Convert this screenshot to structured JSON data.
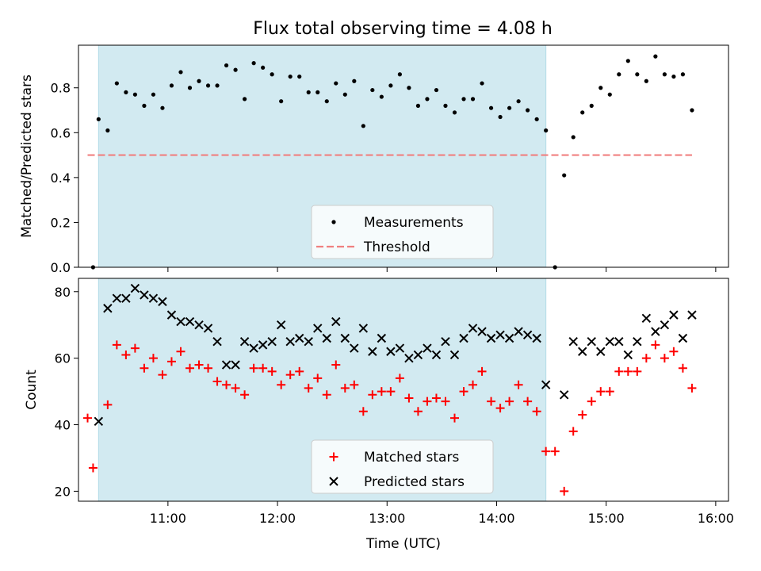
{
  "title": "Flux total observing time = 4.08 h",
  "colors": {
    "observing_window": "#add8e6",
    "measurements": "#000000",
    "threshold": "#f08080",
    "matched": "#ff0000",
    "predicted": "#000000"
  },
  "chart_data": [
    {
      "type": "scatter",
      "panel": "top",
      "title": "Flux total observing time = 4.08 h",
      "xlabel": "",
      "ylabel": "Matched/Predicted stars",
      "ylim": [
        0,
        0.99
      ],
      "yticks": [
        0.0,
        0.2,
        0.4,
        0.6,
        0.8
      ],
      "yticklabels": [
        "0.0",
        "0.2",
        "0.4",
        "0.6",
        "0.8"
      ],
      "xlim": [
        "10:11",
        "16:07"
      ],
      "shaded_interval": [
        "10:22",
        "14:27"
      ],
      "legend": {
        "placement": "lower-center",
        "entries": [
          "Measurements",
          "Threshold"
        ]
      },
      "threshold": {
        "name": "Threshold",
        "y": 0.5,
        "x": [
          "10:16",
          "15:47"
        ]
      },
      "series": [
        {
          "name": "Measurements",
          "marker": "dot",
          "points": [
            [
              "10:19",
              0.0
            ],
            [
              "10:22",
              0.66
            ],
            [
              "10:27",
              0.61
            ],
            [
              "10:32",
              0.82
            ],
            [
              "10:37",
              0.78
            ],
            [
              "10:42",
              0.77
            ],
            [
              "10:47",
              0.72
            ],
            [
              "10:52",
              0.77
            ],
            [
              "10:57",
              0.71
            ],
            [
              "11:02",
              0.81
            ],
            [
              "11:07",
              0.87
            ],
            [
              "11:12",
              0.8
            ],
            [
              "11:17",
              0.83
            ],
            [
              "11:22",
              0.81
            ],
            [
              "11:27",
              0.81
            ],
            [
              "11:32",
              0.9
            ],
            [
              "11:37",
              0.88
            ],
            [
              "11:42",
              0.75
            ],
            [
              "11:47",
              0.91
            ],
            [
              "11:52",
              0.89
            ],
            [
              "11:57",
              0.86
            ],
            [
              "12:02",
              0.74
            ],
            [
              "12:07",
              0.85
            ],
            [
              "12:12",
              0.85
            ],
            [
              "12:17",
              0.78
            ],
            [
              "12:22",
              0.78
            ],
            [
              "12:27",
              0.74
            ],
            [
              "12:32",
              0.82
            ],
            [
              "12:37",
              0.77
            ],
            [
              "12:42",
              0.83
            ],
            [
              "12:47",
              0.63
            ],
            [
              "12:52",
              0.79
            ],
            [
              "12:57",
              0.76
            ],
            [
              "13:02",
              0.81
            ],
            [
              "13:07",
              0.86
            ],
            [
              "13:12",
              0.8
            ],
            [
              "13:17",
              0.72
            ],
            [
              "13:22",
              0.75
            ],
            [
              "13:27",
              0.79
            ],
            [
              "13:32",
              0.72
            ],
            [
              "13:37",
              0.69
            ],
            [
              "13:42",
              0.75
            ],
            [
              "13:47",
              0.75
            ],
            [
              "13:52",
              0.82
            ],
            [
              "13:57",
              0.71
            ],
            [
              "14:02",
              0.67
            ],
            [
              "14:07",
              0.71
            ],
            [
              "14:12",
              0.74
            ],
            [
              "14:17",
              0.7
            ],
            [
              "14:22",
              0.66
            ],
            [
              "14:27",
              0.61
            ],
            [
              "14:32",
              0.0
            ],
            [
              "14:37",
              0.41
            ],
            [
              "14:42",
              0.58
            ],
            [
              "14:47",
              0.69
            ],
            [
              "14:52",
              0.72
            ],
            [
              "14:57",
              0.8
            ],
            [
              "15:02",
              0.77
            ],
            [
              "15:07",
              0.86
            ],
            [
              "15:12",
              0.92
            ],
            [
              "15:17",
              0.86
            ],
            [
              "15:22",
              0.83
            ],
            [
              "15:27",
              0.94
            ],
            [
              "15:32",
              0.86
            ],
            [
              "15:37",
              0.85
            ],
            [
              "15:42",
              0.86
            ],
            [
              "15:47",
              0.7
            ]
          ]
        }
      ]
    },
    {
      "type": "scatter",
      "panel": "bottom",
      "title": "",
      "xlabel": "Time (UTC)",
      "ylabel": "Count",
      "ylim": [
        17,
        84
      ],
      "yticks": [
        20,
        40,
        60,
        80
      ],
      "yticklabels": [
        "20",
        "40",
        "60",
        "80"
      ],
      "xlim": [
        "10:11",
        "16:07"
      ],
      "xticks": [
        "11:00",
        "12:00",
        "13:00",
        "14:00",
        "15:00",
        "16:00"
      ],
      "xticklabels": [
        "11:00",
        "12:00",
        "13:00",
        "14:00",
        "15:00",
        "16:00"
      ],
      "shaded_interval": [
        "10:22",
        "14:27"
      ],
      "legend": {
        "placement": "lower-center",
        "entries": [
          "Matched stars",
          "Predicted stars"
        ]
      },
      "series": [
        {
          "name": "Matched stars",
          "marker": "plus",
          "points": [
            [
              "10:16",
              42
            ],
            [
              "10:19",
              27
            ],
            [
              "10:27",
              46
            ],
            [
              "10:32",
              64
            ],
            [
              "10:37",
              61
            ],
            [
              "10:42",
              63
            ],
            [
              "10:47",
              57
            ],
            [
              "10:52",
              60
            ],
            [
              "10:57",
              55
            ],
            [
              "11:02",
              59
            ],
            [
              "11:07",
              62
            ],
            [
              "11:12",
              57
            ],
            [
              "11:17",
              58
            ],
            [
              "11:22",
              57
            ],
            [
              "11:27",
              53
            ],
            [
              "11:32",
              52
            ],
            [
              "11:37",
              51
            ],
            [
              "11:42",
              49
            ],
            [
              "11:47",
              57
            ],
            [
              "11:52",
              57
            ],
            [
              "11:57",
              56
            ],
            [
              "12:02",
              52
            ],
            [
              "12:07",
              55
            ],
            [
              "12:12",
              56
            ],
            [
              "12:17",
              51
            ],
            [
              "12:22",
              54
            ],
            [
              "12:27",
              49
            ],
            [
              "12:32",
              58
            ],
            [
              "12:37",
              51
            ],
            [
              "12:42",
              52
            ],
            [
              "12:47",
              44
            ],
            [
              "12:52",
              49
            ],
            [
              "12:57",
              50
            ],
            [
              "13:02",
              50
            ],
            [
              "13:07",
              54
            ],
            [
              "13:12",
              48
            ],
            [
              "13:17",
              44
            ],
            [
              "13:22",
              47
            ],
            [
              "13:27",
              48
            ],
            [
              "13:32",
              47
            ],
            [
              "13:37",
              42
            ],
            [
              "13:42",
              50
            ],
            [
              "13:47",
              52
            ],
            [
              "13:52",
              56
            ],
            [
              "13:57",
              47
            ],
            [
              "14:02",
              45
            ],
            [
              "14:07",
              47
            ],
            [
              "14:12",
              52
            ],
            [
              "14:17",
              47
            ],
            [
              "14:22",
              44
            ],
            [
              "14:27",
              32
            ],
            [
              "14:32",
              32
            ],
            [
              "14:37",
              20
            ],
            [
              "14:42",
              38
            ],
            [
              "14:47",
              43
            ],
            [
              "14:52",
              47
            ],
            [
              "14:57",
              50
            ],
            [
              "15:02",
              50
            ],
            [
              "15:07",
              56
            ],
            [
              "15:12",
              56
            ],
            [
              "15:17",
              56
            ],
            [
              "15:22",
              60
            ],
            [
              "15:27",
              64
            ],
            [
              "15:32",
              60
            ],
            [
              "15:37",
              62
            ],
            [
              "15:42",
              57
            ],
            [
              "15:47",
              51
            ]
          ]
        },
        {
          "name": "Predicted stars",
          "marker": "x",
          "points": [
            [
              "10:22",
              41
            ],
            [
              "10:27",
              75
            ],
            [
              "10:32",
              78
            ],
            [
              "10:37",
              78
            ],
            [
              "10:42",
              81
            ],
            [
              "10:47",
              79
            ],
            [
              "10:52",
              78
            ],
            [
              "10:57",
              77
            ],
            [
              "11:02",
              73
            ],
            [
              "11:07",
              71
            ],
            [
              "11:12",
              71
            ],
            [
              "11:17",
              70
            ],
            [
              "11:22",
              69
            ],
            [
              "11:27",
              65
            ],
            [
              "11:32",
              58
            ],
            [
              "11:37",
              58
            ],
            [
              "11:42",
              65
            ],
            [
              "11:47",
              63
            ],
            [
              "11:52",
              64
            ],
            [
              "11:57",
              65
            ],
            [
              "12:02",
              70
            ],
            [
              "12:07",
              65
            ],
            [
              "12:12",
              66
            ],
            [
              "12:17",
              65
            ],
            [
              "12:22",
              69
            ],
            [
              "12:27",
              66
            ],
            [
              "12:32",
              71
            ],
            [
              "12:37",
              66
            ],
            [
              "12:42",
              63
            ],
            [
              "12:47",
              69
            ],
            [
              "12:52",
              62
            ],
            [
              "12:57",
              66
            ],
            [
              "13:02",
              62
            ],
            [
              "13:07",
              63
            ],
            [
              "13:12",
              60
            ],
            [
              "13:17",
              61
            ],
            [
              "13:22",
              63
            ],
            [
              "13:27",
              61
            ],
            [
              "13:32",
              65
            ],
            [
              "13:37",
              61
            ],
            [
              "13:42",
              66
            ],
            [
              "13:47",
              69
            ],
            [
              "13:52",
              68
            ],
            [
              "13:57",
              66
            ],
            [
              "14:02",
              67
            ],
            [
              "14:07",
              66
            ],
            [
              "14:12",
              68
            ],
            [
              "14:17",
              67
            ],
            [
              "14:22",
              66
            ],
            [
              "14:27",
              52
            ],
            [
              "14:37",
              49
            ],
            [
              "14:42",
              65
            ],
            [
              "14:47",
              62
            ],
            [
              "14:52",
              65
            ],
            [
              "14:57",
              62
            ],
            [
              "15:02",
              65
            ],
            [
              "15:07",
              65
            ],
            [
              "15:12",
              61
            ],
            [
              "15:17",
              65
            ],
            [
              "15:22",
              72
            ],
            [
              "15:27",
              68
            ],
            [
              "15:32",
              70
            ],
            [
              "15:37",
              73
            ],
            [
              "15:42",
              66
            ],
            [
              "15:47",
              73
            ]
          ]
        }
      ]
    }
  ]
}
